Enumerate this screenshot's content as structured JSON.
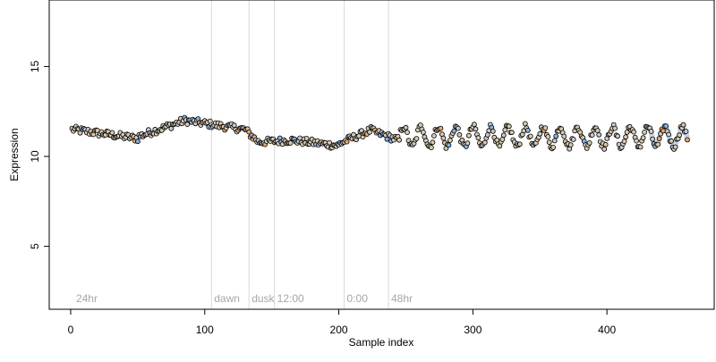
{
  "chart_data": {
    "type": "scatter",
    "xlabel": "Sample index",
    "ylabel": "Expression",
    "xlim": [
      -16,
      480
    ],
    "ylim": [
      1.5,
      18.7
    ],
    "x_ticks": [
      0,
      100,
      200,
      300,
      400
    ],
    "y_ticks": [
      5,
      10,
      15
    ],
    "vertical_markers": [
      {
        "x": 2,
        "label": "24hr",
        "line": false
      },
      {
        "x": 105,
        "label": "dawn",
        "line": true
      },
      {
        "x": 133,
        "label": "dusk",
        "line": true
      },
      {
        "x": 152,
        "label": "12:00",
        "line": true
      },
      {
        "x": 204,
        "label": "0:00",
        "line": true
      },
      {
        "x": 237,
        "label": "48hr",
        "line": true
      }
    ],
    "point_count": 460,
    "point_fill_colors": [
      "#d9c9b0",
      "#f2a35e",
      "#7fb0e8",
      "#c9c9c9"
    ],
    "band_color": "#9db8d9",
    "series": [
      {
        "segments": [
          {
            "x_start": 1,
            "x_end": 50,
            "y_start": 11.5,
            "y_end": 11.0
          },
          {
            "x_start": 50,
            "x_end": 85,
            "y_start": 11.1,
            "y_end": 12.0
          },
          {
            "x_start": 85,
            "x_end": 130,
            "y_start": 12.0,
            "y_end": 11.5
          },
          {
            "x_start": 130,
            "x_end": 140,
            "y_start": 11.5,
            "y_end": 10.8
          },
          {
            "x_start": 140,
            "x_end": 165,
            "y_start": 10.8,
            "y_end": 10.9
          },
          {
            "x_start": 165,
            "x_end": 200,
            "y_start": 10.9,
            "y_end": 10.6
          },
          {
            "x_start": 200,
            "x_end": 225,
            "y_start": 10.7,
            "y_end": 11.5
          },
          {
            "x_start": 225,
            "x_end": 245,
            "y_start": 11.4,
            "y_end": 10.9
          }
        ],
        "oscillation": {
          "x_start": 245,
          "x_end": 460,
          "center": 11.1,
          "amplitude": 0.55,
          "period": 13
        }
      }
    ]
  }
}
